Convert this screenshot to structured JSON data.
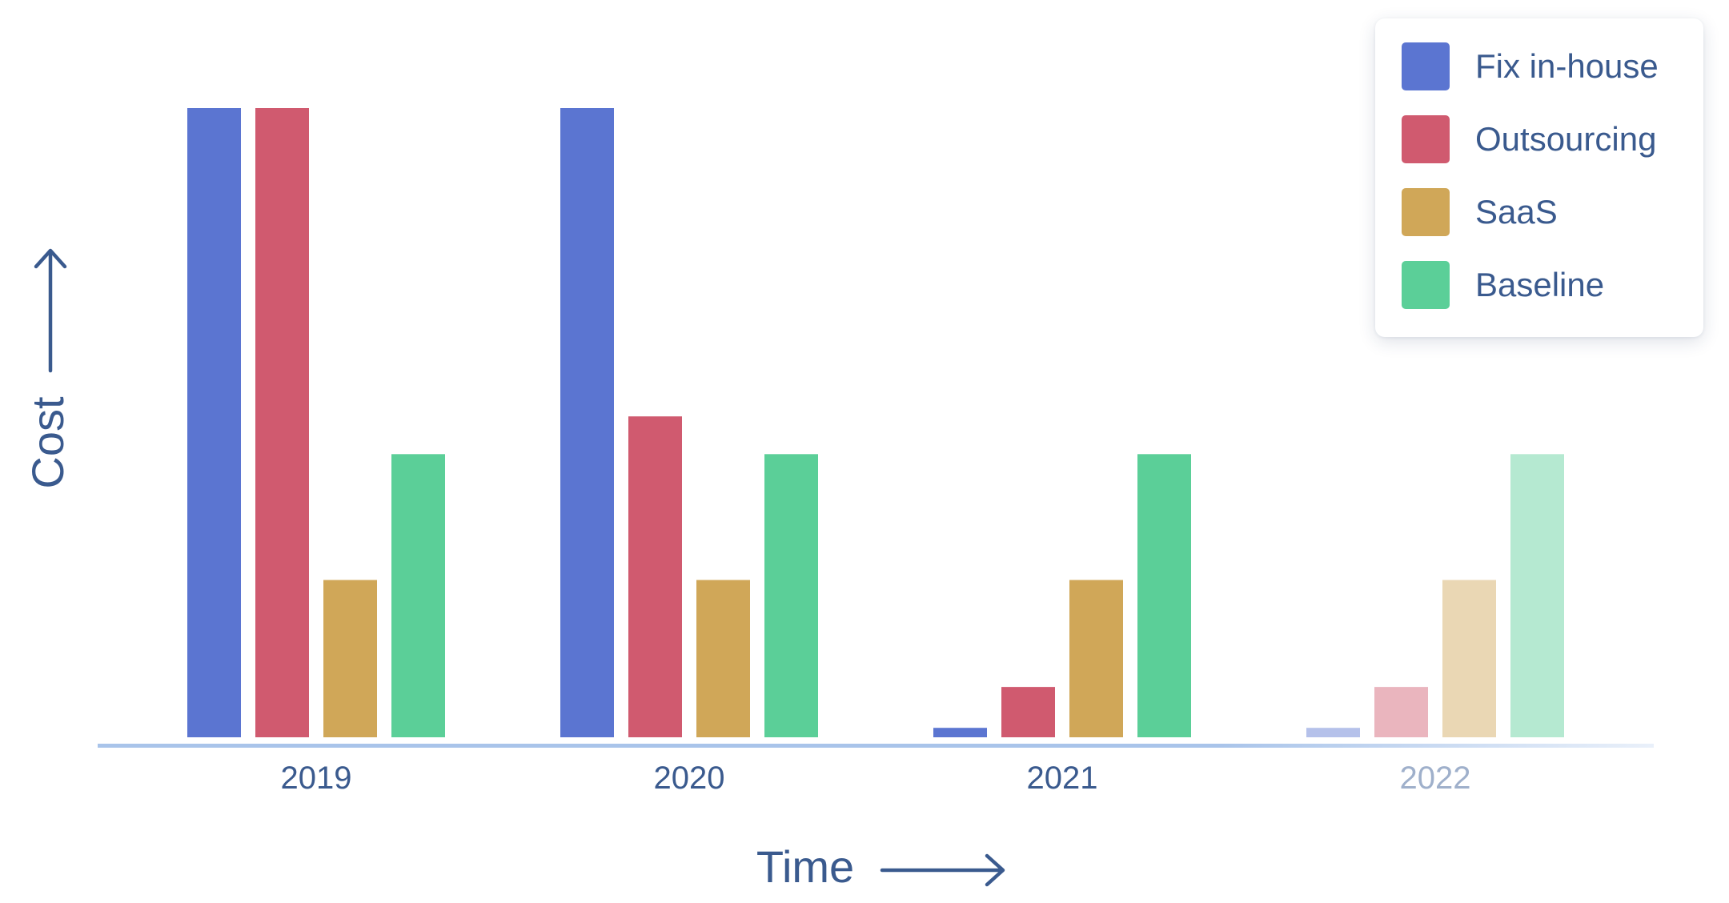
{
  "colors": {
    "text": "#3a5a8e",
    "faded_text": "#9fb0cb",
    "axis": "#a9c4ea"
  },
  "legend": {
    "items": [
      {
        "label": "Fix in-house",
        "color": "#5b75d1"
      },
      {
        "label": "Outsourcing",
        "color": "#d05a6f"
      },
      {
        "label": "SaaS",
        "color": "#d0a758"
      },
      {
        "label": "Baseline",
        "color": "#5bcf98"
      }
    ]
  },
  "chart_data": {
    "type": "bar",
    "title": "",
    "xlabel": "Time",
    "ylabel": "Cost",
    "categories": [
      "2019",
      "2020",
      "2021",
      "2022"
    ],
    "ylim": [
      0,
      100
    ],
    "grid": false,
    "legend_position": "top-right",
    "y_ticks_shown": false,
    "faded_categories": [
      "2022"
    ],
    "series": [
      {
        "name": "Fix in-house",
        "color": "#5b75d1",
        "values": [
          100,
          100,
          1.5,
          1.5
        ]
      },
      {
        "name": "Outsourcing",
        "color": "#d05a6f",
        "values": [
          100,
          51,
          8,
          8
        ]
      },
      {
        "name": "SaaS",
        "color": "#d0a758",
        "values": [
          25,
          25,
          25,
          25
        ]
      },
      {
        "name": "Baseline",
        "color": "#5bcf98",
        "values": [
          45,
          45,
          45,
          45
        ]
      }
    ]
  }
}
